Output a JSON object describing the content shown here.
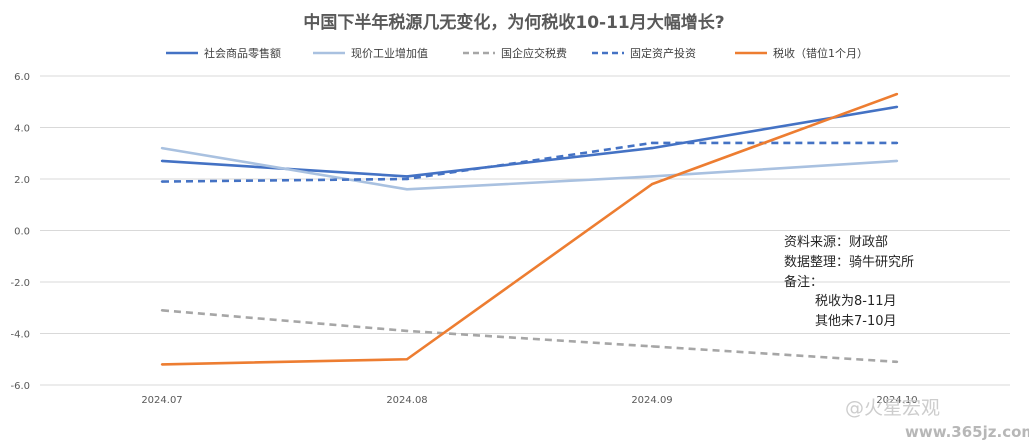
{
  "chart_data": {
    "type": "line",
    "title": "中国下半年税源几无变化，为何税收10-11月大幅增长?",
    "categories": [
      "2024.07",
      "2024.08",
      "2024.09",
      "2024.10"
    ],
    "ylim": [
      -6.0,
      6.0
    ],
    "yticks": [
      "6.0",
      "4.0",
      "2.0",
      "0.0",
      "-2.0",
      "-4.0",
      "-6.0"
    ],
    "grid": "horizontal",
    "legend_position": "top",
    "series": [
      {
        "name": "社会商品零售额",
        "values": [
          2.7,
          2.1,
          3.2,
          4.8
        ],
        "color": "#4472c4",
        "dash": "solid"
      },
      {
        "name": "现价工业增加值",
        "values": [
          3.2,
          1.6,
          2.1,
          2.7
        ],
        "color": "#a9c1e0",
        "dash": "solid"
      },
      {
        "name": "国企应交税费",
        "values": [
          -3.1,
          -3.9,
          -4.5,
          -5.1
        ],
        "color": "#a6a6a6",
        "dash": "dashed"
      },
      {
        "name": "固定资产投资",
        "values": [
          1.9,
          2.0,
          3.4,
          3.4
        ],
        "color": "#4472c4",
        "dash": "dashed"
      },
      {
        "name": "税收（错位1个月）",
        "values": [
          -5.2,
          -5.0,
          1.8,
          5.3
        ],
        "color": "#ed7d31",
        "dash": "solid"
      }
    ],
    "annotation": [
      "资料来源：财政部",
      "数据整理：骑牛研究所",
      "备注：",
      "税收为8-11月",
      "其他未7-10月"
    ],
    "watermark": [
      "@火星宏观",
      "www.365jz.com"
    ]
  }
}
